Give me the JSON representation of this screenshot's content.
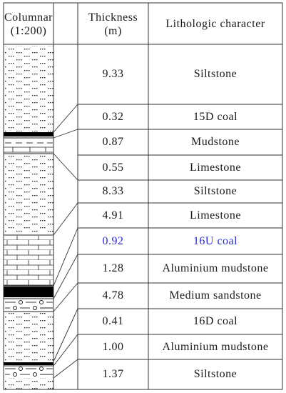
{
  "header": {
    "columnar_line1": "Columnar",
    "columnar_line2": "(1:200)",
    "thickness_line1": "Thickness",
    "thickness_line2": "(m)",
    "lithology": "Lithologic character"
  },
  "highlight_color": "#2b2bd6",
  "rows": [
    {
      "thickness": "9.33",
      "lithology": "Siltstone",
      "highlight": false
    },
    {
      "thickness": "0.32",
      "lithology": "15D coal",
      "highlight": false
    },
    {
      "thickness": "0.87",
      "lithology": "Mudstone",
      "highlight": false
    },
    {
      "thickness": "0.55",
      "lithology": "Limestone",
      "highlight": false
    },
    {
      "thickness": "8.33",
      "lithology": "Siltstone",
      "highlight": false
    },
    {
      "thickness": "4.91",
      "lithology": "Limestone",
      "highlight": false
    },
    {
      "thickness": "0.92",
      "lithology": "16U coal",
      "highlight": true
    },
    {
      "thickness": "1.28",
      "lithology": "Aluminium mudstone",
      "highlight": false
    },
    {
      "thickness": "4.78",
      "lithology": "Medium sandstone",
      "highlight": false
    },
    {
      "thickness": "0.41",
      "lithology": "16D coal",
      "highlight": false
    },
    {
      "thickness": "1.00",
      "lithology": "Aluminium mudstone",
      "highlight": false
    },
    {
      "thickness": "1.37",
      "lithology": "Siltstone",
      "highlight": false
    }
  ]
}
